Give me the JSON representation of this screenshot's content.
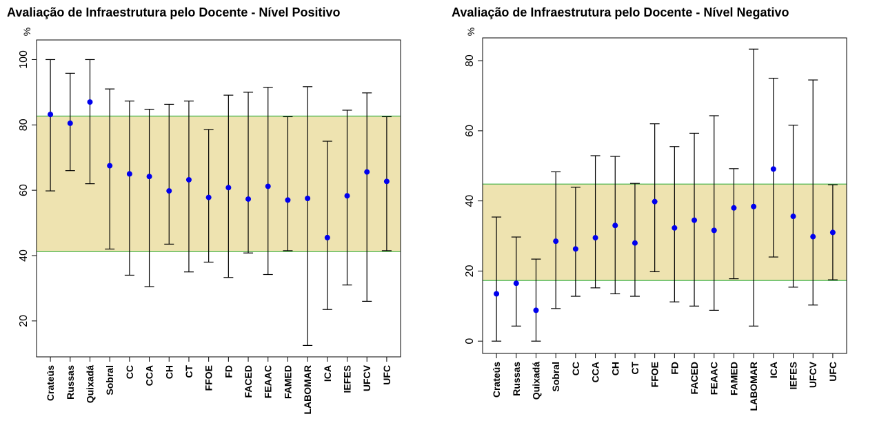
{
  "chart_data": [
    {
      "type": "scatter",
      "title": "Avaliação de Infraestrutura pelo Docente - Nível Positivo",
      "ylabel": "%",
      "ylim": [
        9,
        106
      ],
      "yticks": [
        20,
        40,
        60,
        80,
        100
      ],
      "band": {
        "low": 41.2,
        "high": 82.7,
        "color": "#EEE3B0",
        "line_color": "#3CB043"
      },
      "point_color": "#0000EE",
      "grid": false,
      "categories": [
        "Crateús",
        "Russas",
        "Quixadá",
        "Sobral",
        "CC",
        "CCA",
        "CH",
        "CT",
        "FFOE",
        "FD",
        "FACED",
        "FEAAC",
        "FAMED",
        "LABOMAR",
        "ICA",
        "IEFES",
        "UFCV",
        "UFC"
      ],
      "series": [
        {
          "values": [
            83.2,
            80.5,
            87.0,
            67.5,
            65.0,
            64.2,
            59.8,
            63.2,
            57.8,
            60.8,
            57.3,
            61.2,
            57.0,
            57.5,
            45.5,
            58.3,
            65.6,
            62.7
          ],
          "lower": [
            59.8,
            66.0,
            62.0,
            42.0,
            34.0,
            30.5,
            43.5,
            35.0,
            38.0,
            33.3,
            40.8,
            34.2,
            41.5,
            12.5,
            23.5,
            31.0,
            26.0,
            41.5
          ],
          "upper": [
            100.0,
            95.8,
            100.0,
            91.0,
            87.3,
            84.8,
            86.3,
            87.3,
            78.6,
            89.1,
            90.0,
            91.5,
            82.5,
            91.7,
            75.0,
            84.5,
            89.8,
            82.5
          ]
        }
      ]
    },
    {
      "type": "scatter",
      "title": "Avaliação de Infraestrutura pelo Docente - Nível Negativo",
      "ylabel": "%",
      "ylim": [
        -3.5,
        86.5
      ],
      "yticks": [
        0,
        20,
        40,
        60,
        80
      ],
      "band": {
        "low": 17.3,
        "high": 44.8,
        "color": "#EEE3B0",
        "line_color": "#3CB043"
      },
      "point_color": "#0000EE",
      "grid": false,
      "categories": [
        "Crateús",
        "Russas",
        "Quixadá",
        "Sobral",
        "CC",
        "CCA",
        "CH",
        "CT",
        "FFOE",
        "FD",
        "FACED",
        "FEAAC",
        "FAMED",
        "LABOMAR",
        "ICA",
        "IEFES",
        "UFCV",
        "UFC"
      ],
      "series": [
        {
          "values": [
            13.5,
            16.5,
            8.8,
            28.5,
            26.3,
            29.5,
            33.0,
            28.0,
            39.8,
            32.3,
            34.5,
            31.6,
            38.0,
            38.4,
            49.1,
            35.6,
            29.8,
            31.0
          ],
          "lower": [
            0.0,
            4.3,
            0.0,
            9.3,
            12.8,
            15.2,
            13.5,
            12.8,
            19.8,
            11.2,
            10.0,
            8.8,
            17.8,
            4.3,
            24.0,
            15.4,
            10.3,
            17.5
          ],
          "upper": [
            35.4,
            29.7,
            23.4,
            48.3,
            43.9,
            52.9,
            52.7,
            45.0,
            62.0,
            55.5,
            59.3,
            64.3,
            49.2,
            83.3,
            75.0,
            61.6,
            74.5,
            44.6
          ]
        }
      ]
    }
  ]
}
